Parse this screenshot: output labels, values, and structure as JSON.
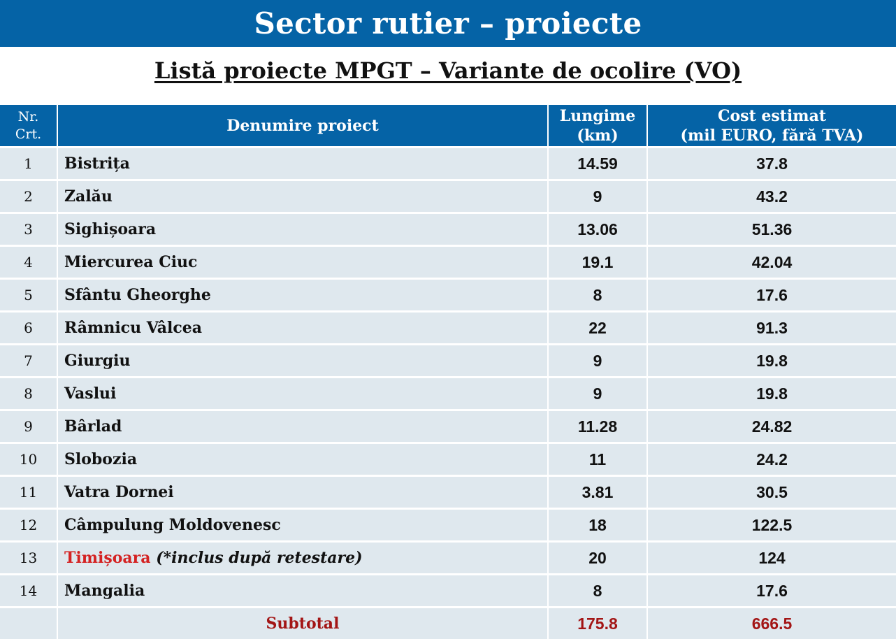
{
  "header": {
    "title": "Sector rutier – proiecte"
  },
  "subtitle": "Listă proiecte MPGT – Variante de ocolire (VO)",
  "table": {
    "columns": {
      "nr_line1": "Nr.",
      "nr_line2": "Crt.",
      "name": "Denumire proiect",
      "length_line1": "Lungime",
      "length_line2": "(km)",
      "cost_line1": "Cost estimat",
      "cost_line2": "(mil EURO, fără TVA)"
    },
    "rows": [
      {
        "nr": "1",
        "name": "Bistrița",
        "length": "14.59",
        "cost": "37.8"
      },
      {
        "nr": "2",
        "name": "Zalău",
        "length": "9",
        "cost": "43.2"
      },
      {
        "nr": "3",
        "name": "Sighișoara",
        "length": "13.06",
        "cost": "51.36"
      },
      {
        "nr": "4",
        "name": "Miercurea Ciuc",
        "length": "19.1",
        "cost": "42.04"
      },
      {
        "nr": "5",
        "name": "Sfântu Gheorghe",
        "length": "8",
        "cost": "17.6"
      },
      {
        "nr": "6",
        "name": "Râmnicu Vâlcea",
        "length": "22",
        "cost": "91.3"
      },
      {
        "nr": "7",
        "name": "Giurgiu",
        "length": "9",
        "cost": "19.8"
      },
      {
        "nr": "8",
        "name": "Vaslui",
        "length": "9",
        "cost": "19.8"
      },
      {
        "nr": "9",
        "name": "Bârlad",
        "length": "11.28",
        "cost": "24.82"
      },
      {
        "nr": "10",
        "name": "Slobozia",
        "length": "11",
        "cost": "24.2"
      },
      {
        "nr": "11",
        "name": "Vatra Dornei",
        "length": "3.81",
        "cost": "30.5"
      },
      {
        "nr": "12",
        "name": "Câmpulung Moldovenesc",
        "length": "18",
        "cost": "122.5"
      },
      {
        "nr": "13",
        "name": "Timișoara",
        "note": "(*inclus după retestare)",
        "length": "20",
        "cost": "124"
      },
      {
        "nr": "14",
        "name": "Mangalia",
        "length": "8",
        "cost": "17.6"
      }
    ],
    "subtotal": {
      "label": "Subtotal",
      "length": "175.8",
      "cost": "666.5"
    }
  },
  "colors": {
    "header_blue": "#0563a6",
    "row_bg": "#dfe8ee",
    "highlight_red": "#d42323",
    "subtotal_red": "#a31515"
  }
}
